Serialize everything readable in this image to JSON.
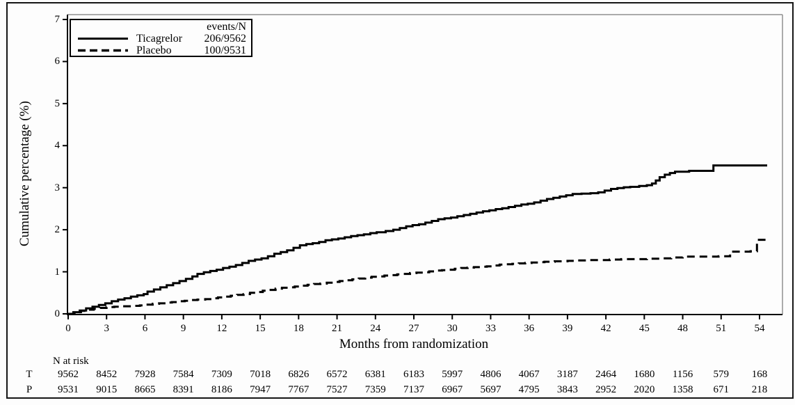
{
  "figure_title": "",
  "legend": {
    "header": "events/N",
    "items": [
      {
        "label": "Ticagrelor",
        "value": "206/9562",
        "line_style": "solid"
      },
      {
        "label": "Placebo",
        "value": "100/9531",
        "line_style": "dashed"
      }
    ]
  },
  "risk_table": {
    "title": "N at risk",
    "rows": [
      {
        "label": "T",
        "values": [
          "9562",
          "8452",
          "7928",
          "7584",
          "7309",
          "7018",
          "6826",
          "6572",
          "6381",
          "6183",
          "5997",
          "4806",
          "4067",
          "3187",
          "2464",
          "1680",
          "1156",
          "579",
          "168"
        ]
      },
      {
        "label": "P",
        "values": [
          "9531",
          "9015",
          "8665",
          "8391",
          "8186",
          "7947",
          "7767",
          "7527",
          "7359",
          "7137",
          "6967",
          "5697",
          "4795",
          "3843",
          "2952",
          "2020",
          "1358",
          "671",
          "218"
        ]
      }
    ]
  },
  "chart_data": {
    "type": "line",
    "subtype": "kaplan-meier-step",
    "title": "",
    "xlabel": "Months from randomization",
    "ylabel": "Cumulative percentage (%)",
    "xlim": [
      0,
      54
    ],
    "ylim": [
      0,
      7
    ],
    "x_ticks": [
      0,
      3,
      6,
      9,
      12,
      15,
      18,
      21,
      24,
      27,
      30,
      33,
      36,
      39,
      42,
      45,
      48,
      51,
      54
    ],
    "y_ticks": [
      0,
      1,
      2,
      3,
      4,
      5,
      6,
      7
    ],
    "grid": false,
    "legend_position": "top-left",
    "series": [
      {
        "name": "Ticagrelor",
        "events_n": "206/9562",
        "style": "solid",
        "color": "#000000",
        "points": [
          [
            0,
            0
          ],
          [
            0.4,
            0.04
          ],
          [
            0.9,
            0.08
          ],
          [
            1.4,
            0.13
          ],
          [
            1.9,
            0.17
          ],
          [
            2.4,
            0.21
          ],
          [
            2.9,
            0.25
          ],
          [
            3.4,
            0.3
          ],
          [
            3.9,
            0.34
          ],
          [
            4.4,
            0.37
          ],
          [
            4.9,
            0.41
          ],
          [
            5.4,
            0.44
          ],
          [
            5.9,
            0.47
          ],
          [
            6.2,
            0.53
          ],
          [
            6.7,
            0.58
          ],
          [
            7.2,
            0.63
          ],
          [
            7.7,
            0.68
          ],
          [
            8.2,
            0.73
          ],
          [
            8.7,
            0.78
          ],
          [
            9.2,
            0.83
          ],
          [
            9.7,
            0.89
          ],
          [
            10.1,
            0.95
          ],
          [
            10.6,
            0.99
          ],
          [
            11.1,
            1.02
          ],
          [
            11.6,
            1.05
          ],
          [
            12.1,
            1.09
          ],
          [
            12.6,
            1.12
          ],
          [
            13.1,
            1.16
          ],
          [
            13.6,
            1.21
          ],
          [
            14.1,
            1.26
          ],
          [
            14.6,
            1.29
          ],
          [
            15.1,
            1.32
          ],
          [
            15.6,
            1.37
          ],
          [
            16.1,
            1.43
          ],
          [
            16.6,
            1.47
          ],
          [
            17.1,
            1.51
          ],
          [
            17.6,
            1.57
          ],
          [
            18.1,
            1.63
          ],
          [
            18.6,
            1.66
          ],
          [
            19.1,
            1.68
          ],
          [
            19.6,
            1.71
          ],
          [
            20.1,
            1.75
          ],
          [
            20.6,
            1.77
          ],
          [
            21.1,
            1.79
          ],
          [
            21.6,
            1.82
          ],
          [
            22.1,
            1.85
          ],
          [
            22.6,
            1.87
          ],
          [
            23.1,
            1.89
          ],
          [
            23.6,
            1.92
          ],
          [
            24.1,
            1.94
          ],
          [
            24.8,
            1.97
          ],
          [
            25.4,
            2.0
          ],
          [
            25.9,
            2.04
          ],
          [
            26.4,
            2.08
          ],
          [
            26.9,
            2.11
          ],
          [
            27.4,
            2.13
          ],
          [
            27.9,
            2.17
          ],
          [
            28.4,
            2.21
          ],
          [
            28.9,
            2.25
          ],
          [
            29.4,
            2.27
          ],
          [
            29.9,
            2.29
          ],
          [
            30.4,
            2.32
          ],
          [
            30.9,
            2.35
          ],
          [
            31.4,
            2.38
          ],
          [
            31.9,
            2.41
          ],
          [
            32.4,
            2.44
          ],
          [
            32.9,
            2.46
          ],
          [
            33.4,
            2.49
          ],
          [
            33.9,
            2.51
          ],
          [
            34.4,
            2.54
          ],
          [
            34.9,
            2.57
          ],
          [
            35.4,
            2.6
          ],
          [
            35.9,
            2.62
          ],
          [
            36.4,
            2.65
          ],
          [
            36.9,
            2.69
          ],
          [
            37.4,
            2.73
          ],
          [
            37.9,
            2.76
          ],
          [
            38.4,
            2.79
          ],
          [
            38.9,
            2.82
          ],
          [
            39.4,
            2.85
          ],
          [
            40.1,
            2.86
          ],
          [
            40.8,
            2.87
          ],
          [
            41.4,
            2.89
          ],
          [
            41.9,
            2.93
          ],
          [
            42.4,
            2.97
          ],
          [
            42.9,
            2.99
          ],
          [
            43.4,
            3.01
          ],
          [
            43.9,
            3.02
          ],
          [
            44.6,
            3.04
          ],
          [
            45.2,
            3.06
          ],
          [
            45.6,
            3.1
          ],
          [
            45.9,
            3.17
          ],
          [
            46.2,
            3.25
          ],
          [
            46.6,
            3.31
          ],
          [
            47,
            3.35
          ],
          [
            47.4,
            3.38
          ],
          [
            48.5,
            3.4
          ],
          [
            50.3,
            3.4
          ],
          [
            50.4,
            3.53
          ],
          [
            54.6,
            3.53
          ]
        ]
      },
      {
        "name": "Placebo",
        "events_n": "100/9531",
        "style": "dashed",
        "color": "#000000",
        "points": [
          [
            0,
            0
          ],
          [
            0.5,
            0.04
          ],
          [
            1,
            0.07
          ],
          [
            1.5,
            0.1
          ],
          [
            2,
            0.12
          ],
          [
            2.5,
            0.14
          ],
          [
            3,
            0.16
          ],
          [
            3.6,
            0.17
          ],
          [
            4.2,
            0.18
          ],
          [
            5,
            0.19
          ],
          [
            5.6,
            0.2
          ],
          [
            6.1,
            0.22
          ],
          [
            6.6,
            0.24
          ],
          [
            7.1,
            0.25
          ],
          [
            7.6,
            0.27
          ],
          [
            8.1,
            0.28
          ],
          [
            8.6,
            0.3
          ],
          [
            9.1,
            0.31
          ],
          [
            9.6,
            0.33
          ],
          [
            10.1,
            0.34
          ],
          [
            10.7,
            0.35
          ],
          [
            11.2,
            0.37
          ],
          [
            11.7,
            0.39
          ],
          [
            12.2,
            0.41
          ],
          [
            12.7,
            0.43
          ],
          [
            13.2,
            0.45
          ],
          [
            13.7,
            0.47
          ],
          [
            14.2,
            0.5
          ],
          [
            14.7,
            0.52
          ],
          [
            15.2,
            0.55
          ],
          [
            15.7,
            0.57
          ],
          [
            16.2,
            0.6
          ],
          [
            16.7,
            0.62
          ],
          [
            17.2,
            0.63
          ],
          [
            17.7,
            0.65
          ],
          [
            18.2,
            0.67
          ],
          [
            18.7,
            0.69
          ],
          [
            19.2,
            0.71
          ],
          [
            19.7,
            0.72
          ],
          [
            20.2,
            0.74
          ],
          [
            20.7,
            0.76
          ],
          [
            21.2,
            0.78
          ],
          [
            21.7,
            0.8
          ],
          [
            22.2,
            0.82
          ],
          [
            22.7,
            0.84
          ],
          [
            23.2,
            0.86
          ],
          [
            23.7,
            0.88
          ],
          [
            24.2,
            0.89
          ],
          [
            24.7,
            0.91
          ],
          [
            25.2,
            0.92
          ],
          [
            25.7,
            0.94
          ],
          [
            26.2,
            0.95
          ],
          [
            26.7,
            0.97
          ],
          [
            27.2,
            0.98
          ],
          [
            27.7,
            0.99
          ],
          [
            28.2,
            1.01
          ],
          [
            28.7,
            1.03
          ],
          [
            29.2,
            1.04
          ],
          [
            29.7,
            1.05
          ],
          [
            30.2,
            1.07
          ],
          [
            30.7,
            1.09
          ],
          [
            31.2,
            1.1
          ],
          [
            31.7,
            1.11
          ],
          [
            32.2,
            1.12
          ],
          [
            32.7,
            1.13
          ],
          [
            33.2,
            1.15
          ],
          [
            33.7,
            1.17
          ],
          [
            34.2,
            1.18
          ],
          [
            34.7,
            1.19
          ],
          [
            35.2,
            1.2
          ],
          [
            35.7,
            1.21
          ],
          [
            36.2,
            1.22
          ],
          [
            36.7,
            1.23
          ],
          [
            37.2,
            1.24
          ],
          [
            38,
            1.25
          ],
          [
            39,
            1.26
          ],
          [
            39.7,
            1.27
          ],
          [
            40.5,
            1.28
          ],
          [
            42.3,
            1.29
          ],
          [
            43.2,
            1.3
          ],
          [
            45.2,
            1.31
          ],
          [
            46.5,
            1.32
          ],
          [
            47.1,
            1.34
          ],
          [
            48,
            1.36
          ],
          [
            50.8,
            1.37
          ],
          [
            51.7,
            1.48
          ],
          [
            53.3,
            1.49
          ],
          [
            53.8,
            1.76
          ],
          [
            54.6,
            1.76
          ]
        ]
      }
    ]
  },
  "colors": {
    "curve": "#000000",
    "frame": "#909090",
    "axis": "#000000",
    "border": "#151515",
    "background": "#fdfdfd"
  }
}
